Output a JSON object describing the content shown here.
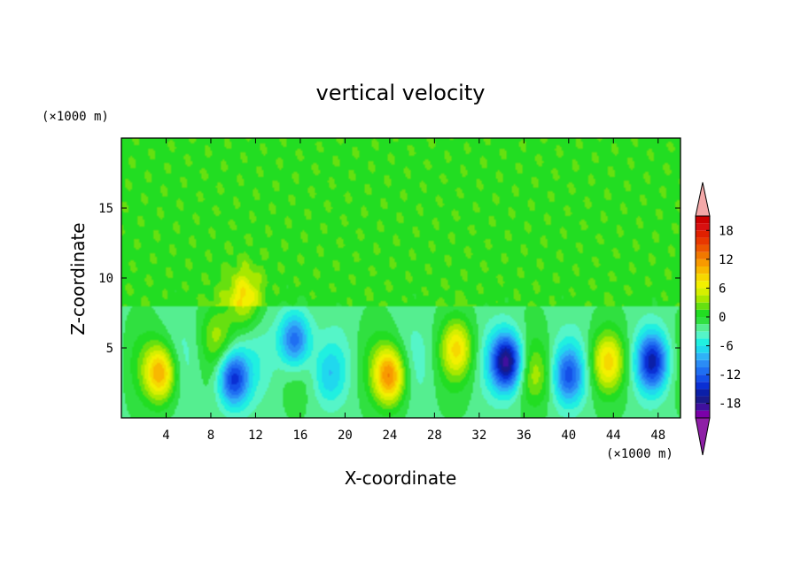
{
  "chart_data": {
    "type": "heatmap",
    "title": "vertical velocity",
    "xlabel": "X-coordinate",
    "ylabel": "Z-coordinate",
    "x_unit_label": "(×1000 m)",
    "y_unit_label": "(×1000 m)",
    "xlim": [
      0,
      50
    ],
    "ylim": [
      0,
      20
    ],
    "x_ticks": [
      4,
      8,
      12,
      16,
      20,
      24,
      28,
      32,
      36,
      40,
      44,
      48
    ],
    "y_ticks": [
      5,
      10,
      15
    ],
    "colorbar": {
      "levels": [
        -21,
        -19.5,
        -18,
        -16.5,
        -15,
        -13.5,
        -12,
        -10.5,
        -9,
        -7.5,
        -6,
        -4.5,
        -3,
        -1.5,
        0,
        1.5,
        3,
        4.5,
        6,
        7.5,
        9,
        10.5,
        12,
        13.5,
        15,
        16.5,
        18,
        19.5,
        21
      ],
      "tick_labels": [
        "-18",
        "-12",
        "-6",
        "0",
        "6",
        "12",
        "18"
      ],
      "tick_values": [
        -18,
        -12,
        -6,
        0,
        6,
        12,
        18
      ],
      "colors": [
        "#7b00a8",
        "#40109e",
        "#1a1a8c",
        "#0b1fa8",
        "#0a2fd4",
        "#1450e8",
        "#1f6ff2",
        "#2b8cf5",
        "#2fb2f7",
        "#20d8ee",
        "#20f0e0",
        "#55f5c8",
        "#55ee90",
        "#30e040",
        "#22dd22",
        "#66e010",
        "#a8e800",
        "#d6ef00",
        "#f2f000",
        "#f6d800",
        "#f8b800",
        "#f89a00",
        "#f07800",
        "#ec5600",
        "#e83800",
        "#e02000",
        "#d81010",
        "#cc0000"
      ],
      "max_extension_color": "#f3a8a8",
      "min_extension_color": "#8e1fa6"
    },
    "features": [
      {
        "x": 3.5,
        "z": 3.2,
        "value": 12
      },
      {
        "x": 8.5,
        "z": 6.0,
        "value": 4
      },
      {
        "x": 10.0,
        "z": 2.8,
        "value": -13
      },
      {
        "x": 11.0,
        "z": 8.5,
        "value": 7
      },
      {
        "x": 15.5,
        "z": 5.5,
        "value": -11
      },
      {
        "x": 18.5,
        "z": 3.0,
        "value": -4
      },
      {
        "x": 24.0,
        "z": 3.0,
        "value": 13
      },
      {
        "x": 30.0,
        "z": 5.0,
        "value": 8
      },
      {
        "x": 34.5,
        "z": 4.0,
        "value": -16
      },
      {
        "x": 37.0,
        "z": 3.0,
        "value": 4
      },
      {
        "x": 40.0,
        "z": 3.0,
        "value": -9
      },
      {
        "x": 43.5,
        "z": 4.0,
        "value": 8
      },
      {
        "x": 47.5,
        "z": 4.0,
        "value": -12
      }
    ]
  }
}
